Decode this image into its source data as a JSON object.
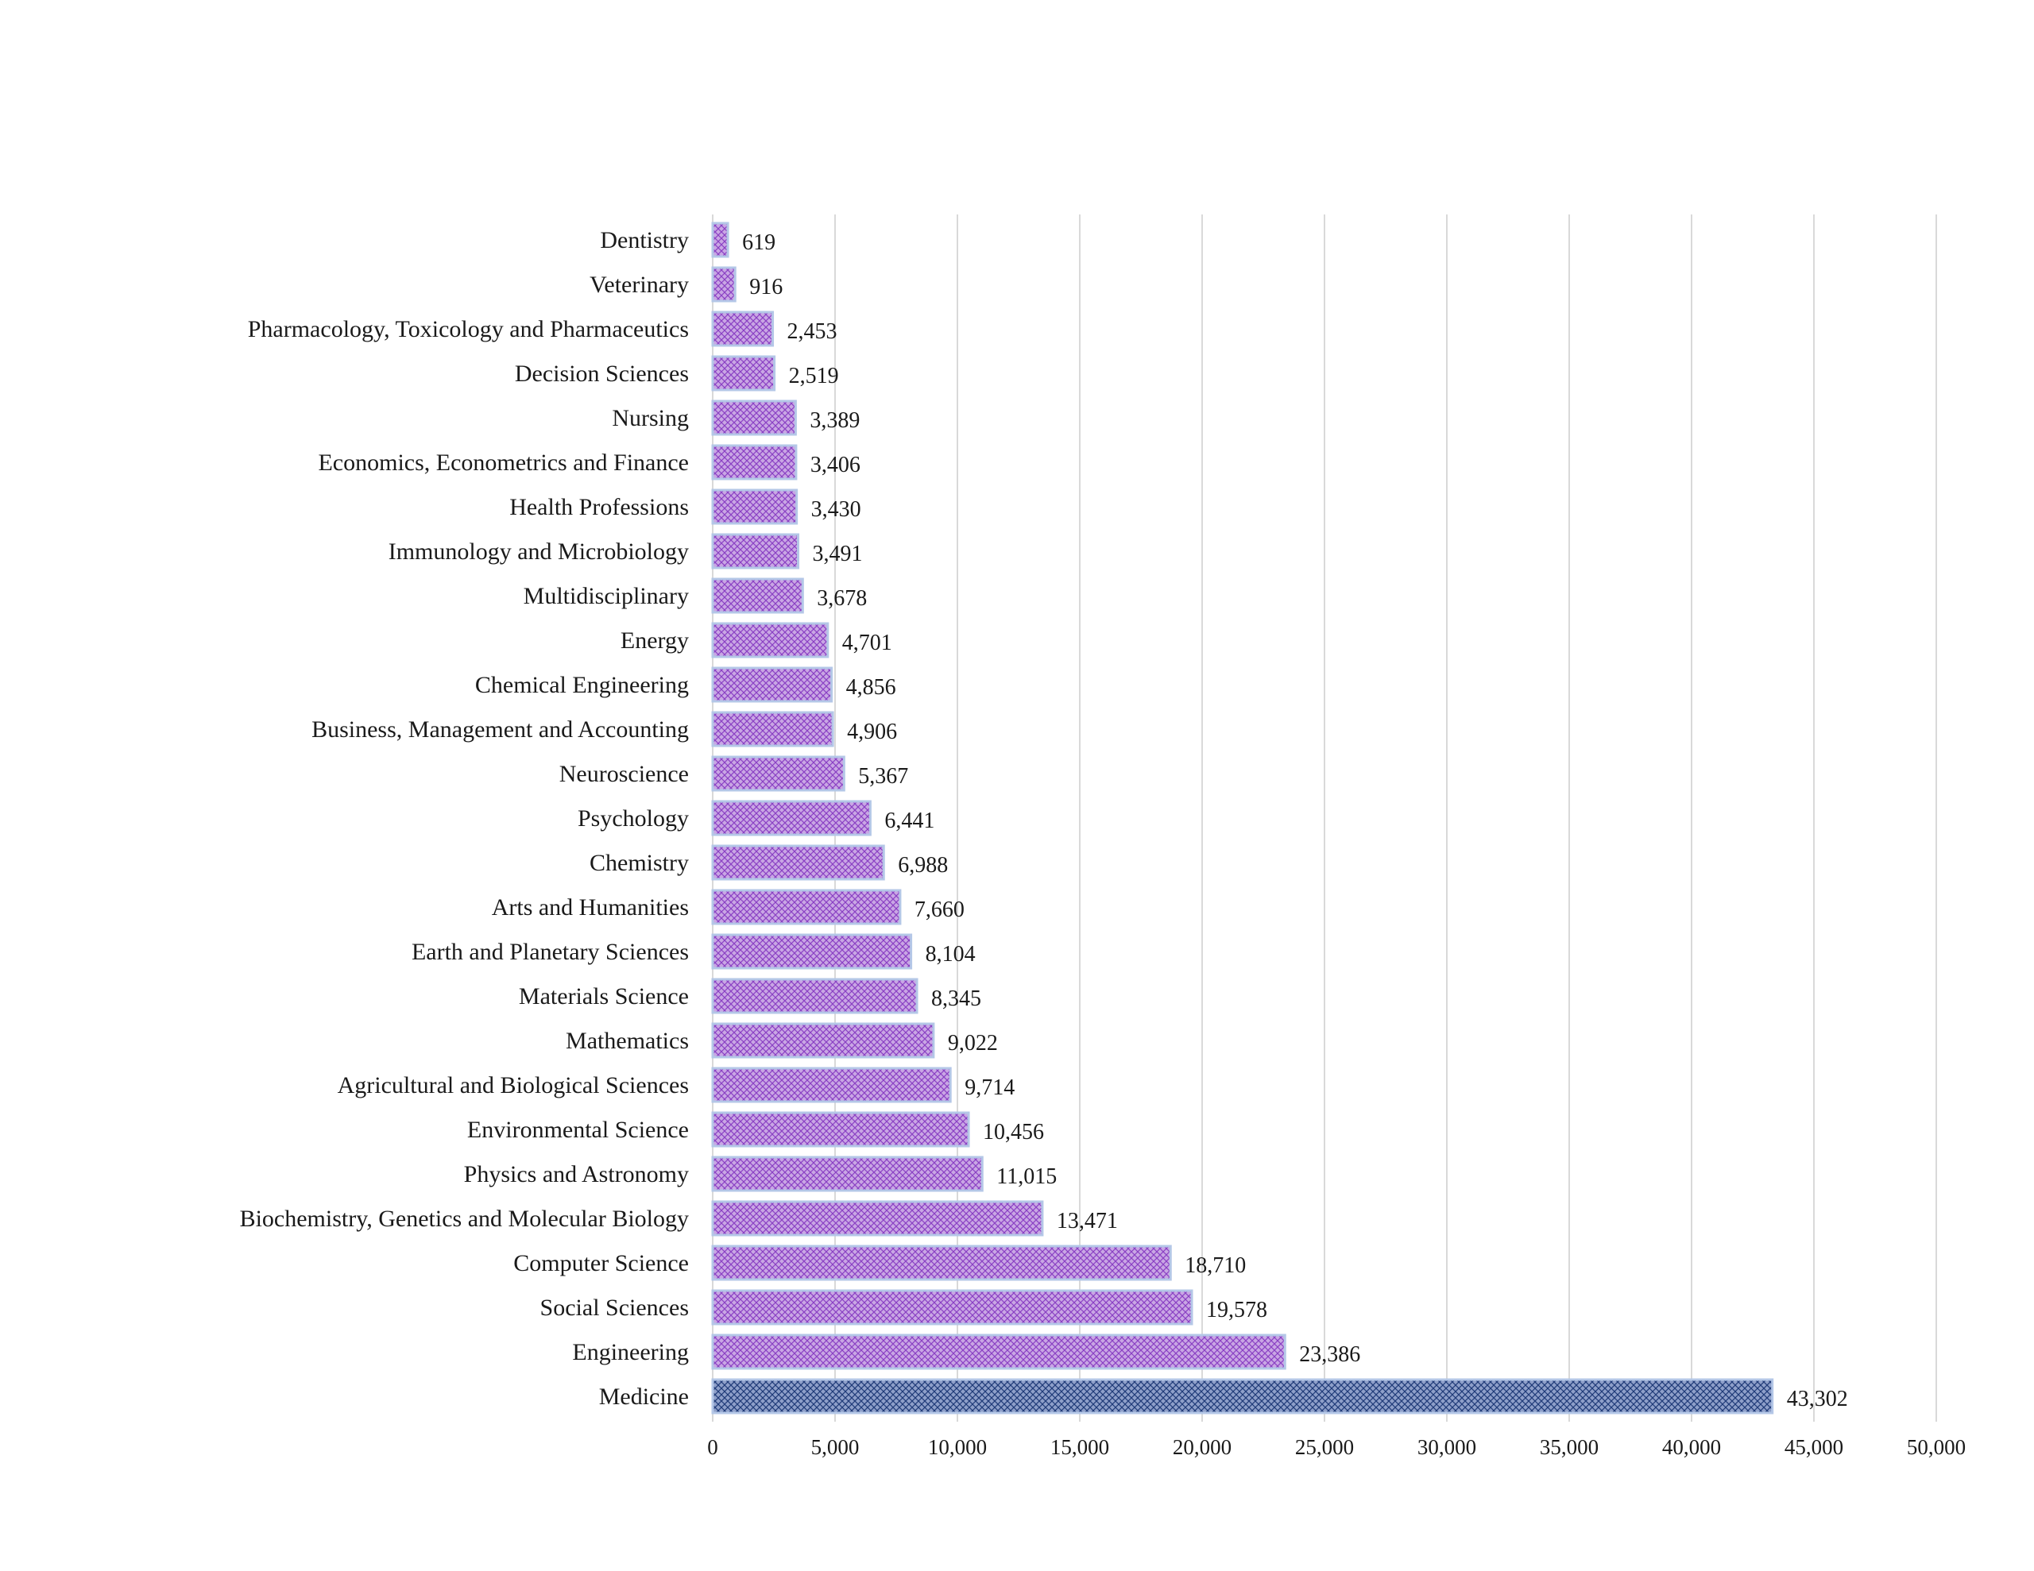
{
  "chart_data": {
    "type": "bar",
    "orientation": "horizontal",
    "title": "",
    "xlabel": "",
    "ylabel": "",
    "xlim": [
      0,
      50000
    ],
    "x_ticks": [
      0,
      5000,
      10000,
      15000,
      20000,
      25000,
      30000,
      35000,
      40000,
      45000,
      50000
    ],
    "x_tick_labels": [
      "0",
      "5,000",
      "10,000",
      "15,000",
      "20,000",
      "25,000",
      "30,000",
      "35,000",
      "40,000",
      "45,000",
      "50,000"
    ],
    "grid": "vertical",
    "legend": "none",
    "categories": [
      "Dentistry",
      "Veterinary",
      "Pharmacology, Toxicology and Pharmaceutics",
      "Decision Sciences",
      "Nursing",
      "Economics, Econometrics and Finance",
      "Health Professions",
      "Immunology and Microbiology",
      "Multidisciplinary",
      "Energy",
      "Chemical Engineering",
      "Business, Management and Accounting",
      "Neuroscience",
      "Psychology",
      "Chemistry",
      "Arts and Humanities",
      "Earth and Planetary Sciences",
      "Materials Science",
      "Mathematics",
      "Agricultural and Biological Sciences",
      "Environmental Science",
      "Physics and Astronomy",
      "Biochemistry, Genetics and Molecular Biology",
      "Computer Science",
      "Social Sciences",
      "Engineering",
      "Medicine"
    ],
    "values": [
      619,
      916,
      2453,
      2519,
      3389,
      3406,
      3430,
      3491,
      3678,
      4701,
      4856,
      4906,
      5367,
      6441,
      6988,
      7660,
      8104,
      8345,
      9022,
      9714,
      10456,
      11015,
      13471,
      18710,
      19578,
      23386,
      43302
    ],
    "value_labels": [
      "619",
      "916",
      "2,453",
      "2,519",
      "3,389",
      "3,406",
      "3,430",
      "3,491",
      "3,678",
      "4,701",
      "4,856",
      "4,906",
      "5,367",
      "6,441",
      "6,988",
      "7,660",
      "8,104",
      "8,345",
      "9,022",
      "9,714",
      "10,456",
      "11,015",
      "13,471",
      "18,710",
      "19,578",
      "23,386",
      "43,302"
    ],
    "highlight": [
      "",
      "",
      "",
      "",
      "",
      "",
      "",
      "",
      "",
      "",
      "",
      "",
      "",
      "",
      "",
      "",
      "",
      "",
      "",
      "",
      "",
      "",
      "",
      "",
      "",
      "",
      "dark"
    ],
    "colors": {
      "bar_fill": "#c9a6e4",
      "bar_pattern": "#8a40c4",
      "bar_border": "#b4c7e7",
      "highlight_fill": "#8e9fc9",
      "highlight_pattern": "#1f3a78",
      "grid": "#d9d9d9",
      "text": "#1a1a1a"
    }
  }
}
